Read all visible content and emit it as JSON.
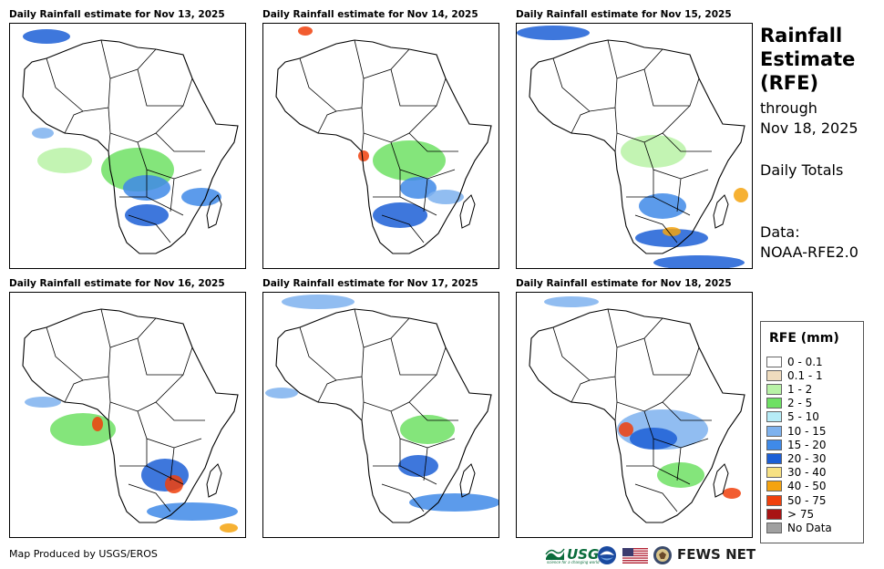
{
  "panels": [
    {
      "title": "Daily Rainfall estimate for Nov 13, 2025"
    },
    {
      "title": "Daily Rainfall estimate for Nov 14, 2025"
    },
    {
      "title": "Daily Rainfall estimate for Nov 15, 2025"
    },
    {
      "title": "Daily Rainfall estimate for Nov 16, 2025"
    },
    {
      "title": "Daily Rainfall estimate for Nov 17, 2025"
    },
    {
      "title": "Daily Rainfall estimate for Nov 18, 2025"
    }
  ],
  "sidebar": {
    "title_line1": "Rainfall",
    "title_line2": "Estimate",
    "title_line3": "(RFE)",
    "through_label": "through",
    "through_date": "Nov 18, 2025",
    "totals_label": "Daily Totals",
    "data_label": "Data:",
    "data_source": "NOAA-RFE2.0"
  },
  "legend": {
    "title": "RFE (mm)",
    "items": [
      {
        "label": "0 - 0.1",
        "color": "#ffffff"
      },
      {
        "label": "0.1 - 1",
        "color": "#efdcbe"
      },
      {
        "label": "1 - 2",
        "color": "#b8f2a6"
      },
      {
        "label": "2 - 5",
        "color": "#6ee064"
      },
      {
        "label": "5 - 10",
        "color": "#b6ecf7"
      },
      {
        "label": "10 - 15",
        "color": "#7eb2ee"
      },
      {
        "label": "15 - 20",
        "color": "#3f8ae8"
      },
      {
        "label": "20 - 30",
        "color": "#1c5fd6"
      },
      {
        "label": "30 - 40",
        "color": "#f7e183"
      },
      {
        "label": "40 - 50",
        "color": "#f5a30f"
      },
      {
        "label": "50 - 75",
        "color": "#f0400c"
      },
      {
        "label": "> 75",
        "color": "#a81414"
      },
      {
        "label": "No Data",
        "color": "#a0a0a0"
      }
    ]
  },
  "footer": {
    "credit": "Map Produced by USGS/EROS",
    "usgs_logo": "USGS",
    "usgs_tagline": "science for a changing world",
    "fewsnet_logo": "FEWS NET"
  }
}
